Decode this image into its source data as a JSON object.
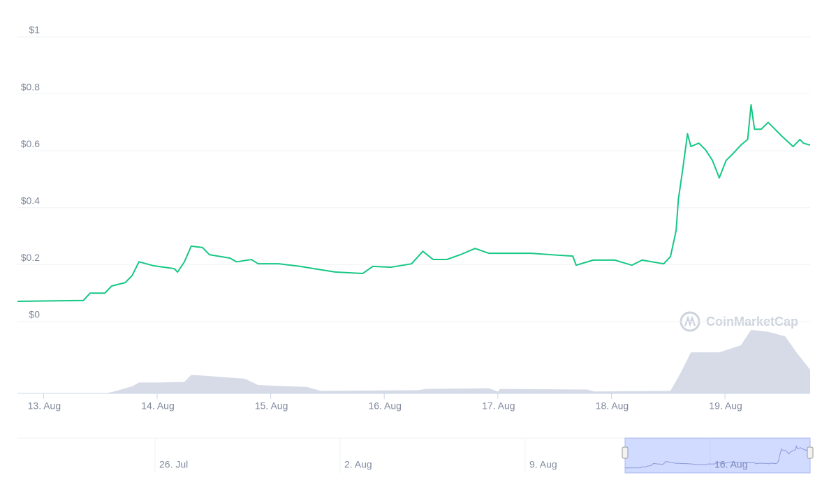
{
  "chart_data": {
    "type": "line",
    "watermark": "CoinMarketCap",
    "x": [
      12.77,
      13.35,
      13.41,
      13.54,
      13.6,
      13.72,
      13.78,
      13.84,
      13.97,
      14.15,
      14.18,
      14.24,
      14.3,
      14.4,
      14.46,
      14.64,
      14.7,
      14.83,
      14.89,
      15.07,
      15.26,
      15.38,
      15.57,
      15.81,
      15.9,
      16.06,
      16.24,
      16.34,
      16.43,
      16.55,
      16.67,
      16.8,
      16.92,
      17.29,
      17.54,
      17.66,
      17.69,
      17.84,
      18.03,
      18.18,
      18.27,
      18.46,
      18.52,
      18.57,
      18.59,
      18.63,
      18.67,
      18.7,
      18.77,
      18.83,
      18.89,
      18.95,
      19.01,
      19.07,
      19.14,
      19.2,
      19.23,
      19.26,
      19.32,
      19.38,
      19.44,
      19.5,
      19.6,
      19.66,
      19.69,
      19.75
    ],
    "series": [
      {
        "color": "#16c784",
        "values": [
          0.071,
          0.074,
          0.1,
          0.1,
          0.125,
          0.137,
          0.162,
          0.21,
          0.196,
          0.186,
          0.174,
          0.21,
          0.265,
          0.26,
          0.235,
          0.223,
          0.21,
          0.218,
          0.203,
          0.203,
          0.194,
          0.186,
          0.174,
          0.169,
          0.194,
          0.191,
          0.203,
          0.247,
          0.218,
          0.218,
          0.235,
          0.257,
          0.24,
          0.24,
          0.233,
          0.23,
          0.198,
          0.216,
          0.216,
          0.198,
          0.216,
          0.203,
          0.228,
          0.32,
          0.43,
          0.54,
          0.66,
          0.615,
          0.627,
          0.603,
          0.566,
          0.505,
          0.566,
          0.59,
          0.62,
          0.64,
          0.762,
          0.676,
          0.676,
          0.7,
          0.676,
          0.652,
          0.615,
          0.64,
          0.627,
          0.62
        ]
      },
      {
        "type": "area",
        "axis": "y2",
        "color": "#cfd5e3",
        "x": [
          12.77,
          13.54,
          13.6,
          13.78,
          13.84,
          14.03,
          14.24,
          14.3,
          14.46,
          14.77,
          14.89,
          15.32,
          15.44,
          16.3,
          16.37,
          16.92,
          17.0,
          17.02,
          17.79,
          17.85,
          18.52,
          18.61,
          18.7,
          18.95,
          19.14,
          19.23,
          19.38,
          19.53,
          19.63,
          19.75
        ],
        "values": [
          0,
          0,
          2,
          11,
          17,
          17,
          18,
          29,
          27,
          23,
          13,
          10,
          4,
          5,
          7,
          8,
          3,
          7,
          6,
          3,
          4,
          32,
          64,
          64,
          75,
          99,
          96,
          89,
          64,
          37
        ]
      }
    ],
    "xlim": [
      12.77,
      19.75
    ],
    "xticks": [
      {
        "value": 13,
        "label": "13. Aug"
      },
      {
        "value": 14,
        "label": "14. Aug"
      },
      {
        "value": 15,
        "label": "15. Aug"
      },
      {
        "value": 16,
        "label": "16. Aug"
      },
      {
        "value": 17,
        "label": "17. Aug"
      },
      {
        "value": 18,
        "label": "18. Aug"
      },
      {
        "value": 19,
        "label": "19. Aug"
      }
    ],
    "ylim": [
      0,
      1.0
    ],
    "yticks": [
      {
        "value": 0,
        "label": "$0"
      },
      {
        "value": 0.2,
        "label": "$0.2"
      },
      {
        "value": 0.4,
        "label": "$0.4"
      },
      {
        "value": 0.6,
        "label": "$0.6"
      },
      {
        "value": 0.8,
        "label": "$0.8"
      },
      {
        "value": 1,
        "label": "$1"
      }
    ],
    "y2lim": [
      0,
      100
    ],
    "grid": true,
    "navigator_labels": [
      "26. Jul",
      "2. Aug",
      "9. Aug",
      "16. Aug"
    ]
  }
}
